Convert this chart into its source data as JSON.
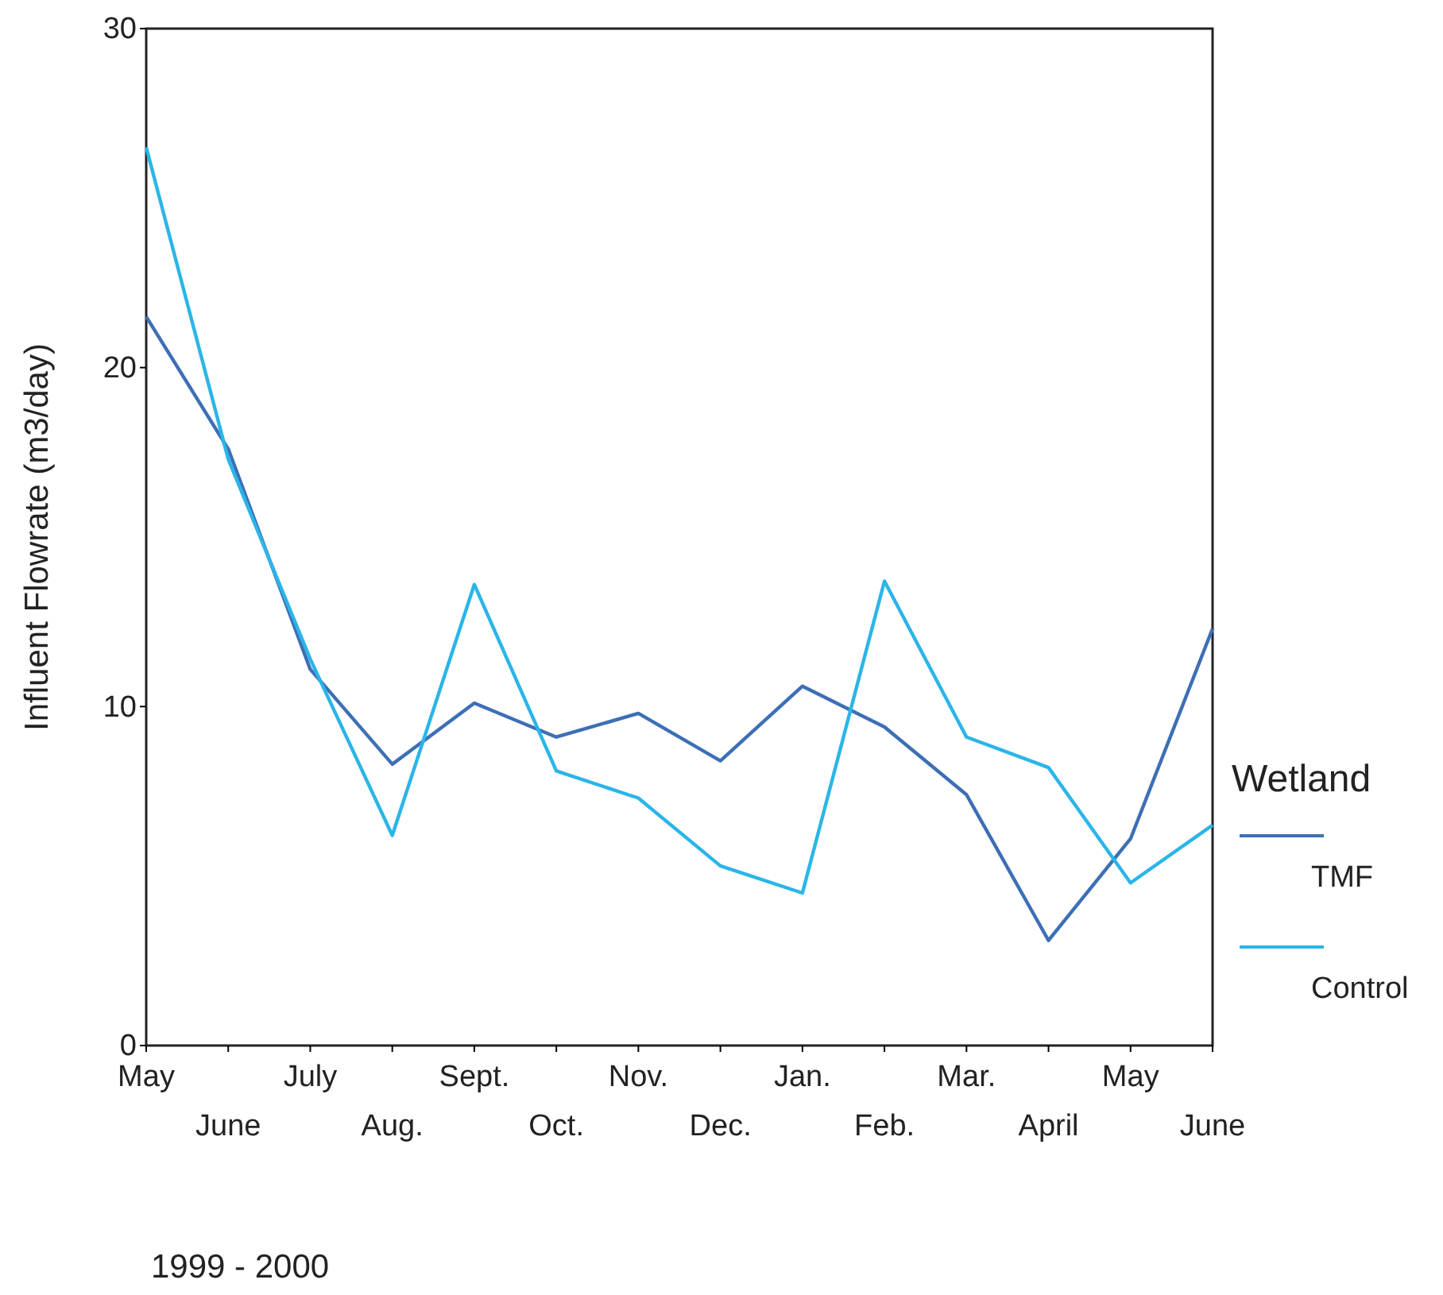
{
  "chart_data": {
    "type": "line",
    "ylabel": "Influent Flowrate (m3/day)",
    "legend_title": "Wetland",
    "legend": "right",
    "categories": [
      "May",
      "June",
      "July",
      "Aug.",
      "Sept.",
      "Oct.",
      "Nov.",
      "Dec.",
      "Jan.",
      "Feb.",
      "Mar.",
      "April",
      "May",
      "June"
    ],
    "series": [
      {
        "name": "TMF",
        "color": "#3d6fb5",
        "values": [
          21.5,
          17.6,
          11.1,
          8.3,
          10.1,
          9.1,
          9.8,
          8.4,
          10.6,
          9.4,
          7.4,
          3.1,
          6.1,
          12.3
        ]
      },
      {
        "name": "Control",
        "color": "#2bb5e8",
        "values": [
          26.5,
          17.3,
          11.4,
          6.2,
          13.6,
          8.1,
          7.3,
          5.3,
          4.5,
          13.7,
          9.1,
          8.2,
          4.8,
          6.5
        ]
      }
    ],
    "ylim": [
      0,
      30
    ],
    "yticks": [
      0,
      10,
      20,
      30
    ],
    "grid": false,
    "marker": "none",
    "line_style": "solid",
    "annotations": [
      "1999 - 2000"
    ]
  }
}
